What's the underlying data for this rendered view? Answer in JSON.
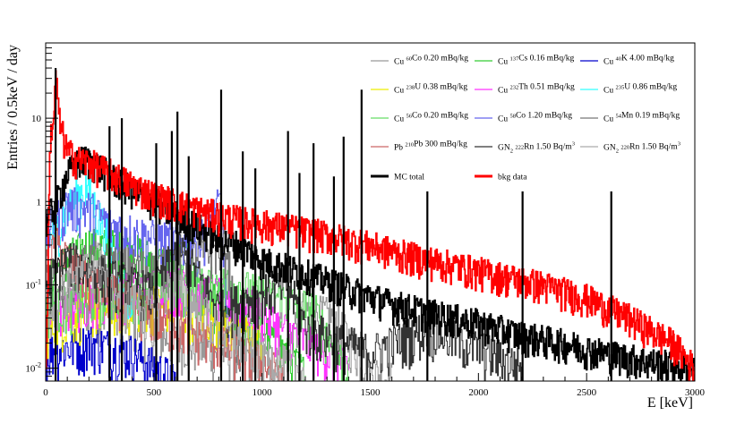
{
  "chart_data": {
    "type": "line",
    "title": "",
    "xlabel": "E [keV]",
    "ylabel": "Entries / 0.5keV / day",
    "xlim": [
      0,
      3000
    ],
    "ylim": [
      0.007,
      80
    ],
    "yscale": "log",
    "grid": false,
    "legend_placement": "top-right",
    "x_ticks": [
      {
        "value": 0,
        "label": "0"
      },
      {
        "value": 500,
        "label": "500"
      },
      {
        "value": 1000,
        "label": "1000"
      },
      {
        "value": 1500,
        "label": "1500"
      },
      {
        "value": 2000,
        "label": "2000"
      },
      {
        "value": 2500,
        "label": "2500"
      },
      {
        "value": 3000,
        "label": "3000"
      }
    ],
    "y_ticks": [
      {
        "value": 0.01,
        "label": "10",
        "sup": "-2"
      },
      {
        "value": 0.1,
        "label": "10",
        "sup": "-1"
      },
      {
        "value": 1,
        "label": "1",
        "sup": ""
      },
      {
        "value": 10,
        "label": "10",
        "sup": ""
      }
    ],
    "series": [
      {
        "name_parts": [
          "Cu ",
          "60",
          "Co 0.20 mBq/kg"
        ],
        "color": "#999999",
        "x": [
          0,
          80,
          150,
          200,
          300,
          500,
          800,
          1100,
          1173,
          1332,
          1500,
          1600
        ],
        "y": [
          0.03,
          0.05,
          0.06,
          0.05,
          0.04,
          0.025,
          0.015,
          0.012,
          0.05,
          0.04,
          0.009,
          0.007
        ]
      },
      {
        "name_parts": [
          "Cu ",
          "137",
          "Cs 0.16 mBq/kg"
        ],
        "color": "#33cc33",
        "x": [
          0,
          100,
          200,
          400,
          600,
          661,
          700,
          1000,
          1200
        ],
        "y": [
          0.1,
          0.2,
          0.3,
          0.25,
          0.15,
          0.4,
          0.08,
          0.03,
          0.008
        ]
      },
      {
        "name_parts": [
          "Cu ",
          "40",
          "K 4.00 mBq/kg"
        ],
        "color": "#0000cc",
        "x": [
          0,
          200,
          400,
          500,
          600
        ],
        "y": [
          0.015,
          0.02,
          0.015,
          0.01,
          0.007
        ]
      },
      {
        "name_parts": [
          "Cu ",
          "238",
          "U 0.38 mBq/kg"
        ],
        "color": "#eeee00",
        "x": [
          0,
          200,
          500,
          800,
          1000
        ],
        "y": [
          0.03,
          0.05,
          0.06,
          0.04,
          0.02
        ]
      },
      {
        "name_parts": [
          "Cu ",
          "232",
          "Th 0.51 mBq/kg"
        ],
        "color": "#ff33ff",
        "x": [
          0,
          200,
          583,
          911,
          1200,
          1400
        ],
        "y": [
          0.04,
          0.07,
          0.1,
          0.06,
          0.02,
          0.01
        ]
      },
      {
        "name_parts": [
          "Cu ",
          "235",
          "U 0.86 mBq/kg"
        ],
        "color": "#33ffff",
        "x": [
          0,
          100,
          186,
          300,
          400
        ],
        "y": [
          0.3,
          0.8,
          1.5,
          0.3,
          0.05
        ]
      },
      {
        "name_parts": [
          "Cu ",
          "56",
          "Co 0.20 mBq/kg"
        ],
        "color": "#66dd66",
        "x": [
          0,
          300,
          847,
          1238,
          1400
        ],
        "y": [
          0.05,
          0.08,
          0.1,
          0.05,
          0.008
        ]
      },
      {
        "name_parts": [
          "Cu ",
          "58",
          "Co 1.20 mBq/kg"
        ],
        "color": "#6666ee",
        "x": [
          0,
          100,
          200,
          300,
          500,
          700,
          811,
          850
        ],
        "y": [
          0.4,
          0.9,
          0.8,
          0.5,
          0.35,
          0.3,
          1.0,
          0.01
        ]
      },
      {
        "name_parts": [
          "Cu ",
          "54",
          "Mn 0.19 mBq/kg"
        ],
        "color": "#777777",
        "x": [
          0,
          200,
          500,
          835,
          900
        ],
        "y": [
          0.1,
          0.2,
          0.15,
          0.3,
          0.01
        ]
      },
      {
        "name_parts": [
          "Pb ",
          "210",
          "Pb 300 mBq/kg"
        ],
        "color": "#cc6666",
        "x": [
          0,
          46,
          100,
          200,
          300,
          500,
          700,
          900,
          1100
        ],
        "y": [
          0.15,
          0.3,
          0.2,
          0.1,
          0.08,
          0.04,
          0.025,
          0.015,
          0.008
        ]
      },
      {
        "name_parts": [
          "GN",
          "2",
          " ",
          "222",
          "Rn 1.50 Bq/m",
          "3",
          ""
        ],
        "color": "#333333",
        "x": [
          0,
          100,
          200,
          300,
          500,
          609,
          800,
          1120,
          1200,
          1500,
          1764,
          2204
        ],
        "y": [
          0.1,
          0.2,
          0.15,
          0.12,
          0.08,
          0.3,
          0.05,
          0.1,
          0.03,
          0.015,
          0.03,
          0.01
        ]
      },
      {
        "name_parts": [
          "GN",
          "2",
          " ",
          "220",
          "Rn 1.50 Bq/m",
          "3",
          ""
        ],
        "color": "#aaaaaa",
        "x": [
          0,
          100,
          238,
          300,
          500,
          583,
          800,
          1000,
          1200
        ],
        "y": [
          0.05,
          0.1,
          0.2,
          0.08,
          0.05,
          0.1,
          0.03,
          0.015,
          0.008
        ]
      },
      {
        "name_parts": [
          "MC total"
        ],
        "color": "#000000",
        "x": [
          0,
          50,
          100,
          150,
          180,
          200,
          250,
          300,
          400,
          500,
          600,
          700,
          800,
          900,
          1000,
          1200,
          1400,
          1600,
          1800,
          2000,
          2200,
          2400,
          2600,
          2800,
          3000
        ],
        "y": [
          0.6,
          1.0,
          2.2,
          3.0,
          3.3,
          3.1,
          2.6,
          2.0,
          1.4,
          1.0,
          0.7,
          0.5,
          0.35,
          0.3,
          0.2,
          0.14,
          0.09,
          0.06,
          0.045,
          0.035,
          0.025,
          0.02,
          0.015,
          0.012,
          0.01
        ]
      },
      {
        "name_parts": [
          "bkg data"
        ],
        "color": "#ff0000",
        "x": [
          0,
          20,
          40,
          46,
          60,
          80,
          100,
          150,
          200,
          300,
          400,
          500,
          700,
          900,
          1100,
          1300,
          1500,
          1700,
          1900,
          2100,
          2300,
          2500,
          2700,
          2900,
          3000
        ],
        "y": [
          0.007,
          6,
          12,
          40,
          10,
          6,
          4,
          3.2,
          3.0,
          2.2,
          1.6,
          1.2,
          0.8,
          0.6,
          0.5,
          0.4,
          0.3,
          0.22,
          0.17,
          0.13,
          0.1,
          0.07,
          0.04,
          0.02,
          0.01
        ]
      }
    ],
    "peaks": [
      {
        "x": 46,
        "y": 40
      },
      {
        "x": 295,
        "y": 8
      },
      {
        "x": 352,
        "y": 10
      },
      {
        "x": 511,
        "y": 5
      },
      {
        "x": 583,
        "y": 7
      },
      {
        "x": 609,
        "y": 12
      },
      {
        "x": 661,
        "y": 3.5
      },
      {
        "x": 811,
        "y": 22
      },
      {
        "x": 911,
        "y": 4
      },
      {
        "x": 969,
        "y": 2.5
      },
      {
        "x": 1120,
        "y": 7
      },
      {
        "x": 1173,
        "y": 2.2
      },
      {
        "x": 1238,
        "y": 5
      },
      {
        "x": 1332,
        "y": 2
      },
      {
        "x": 1377,
        "y": 6
      },
      {
        "x": 1460,
        "y": 22
      },
      {
        "x": 1764,
        "y": 6
      },
      {
        "x": 2204,
        "y": 2.5
      },
      {
        "x": 2614,
        "y": 2.2
      }
    ]
  }
}
